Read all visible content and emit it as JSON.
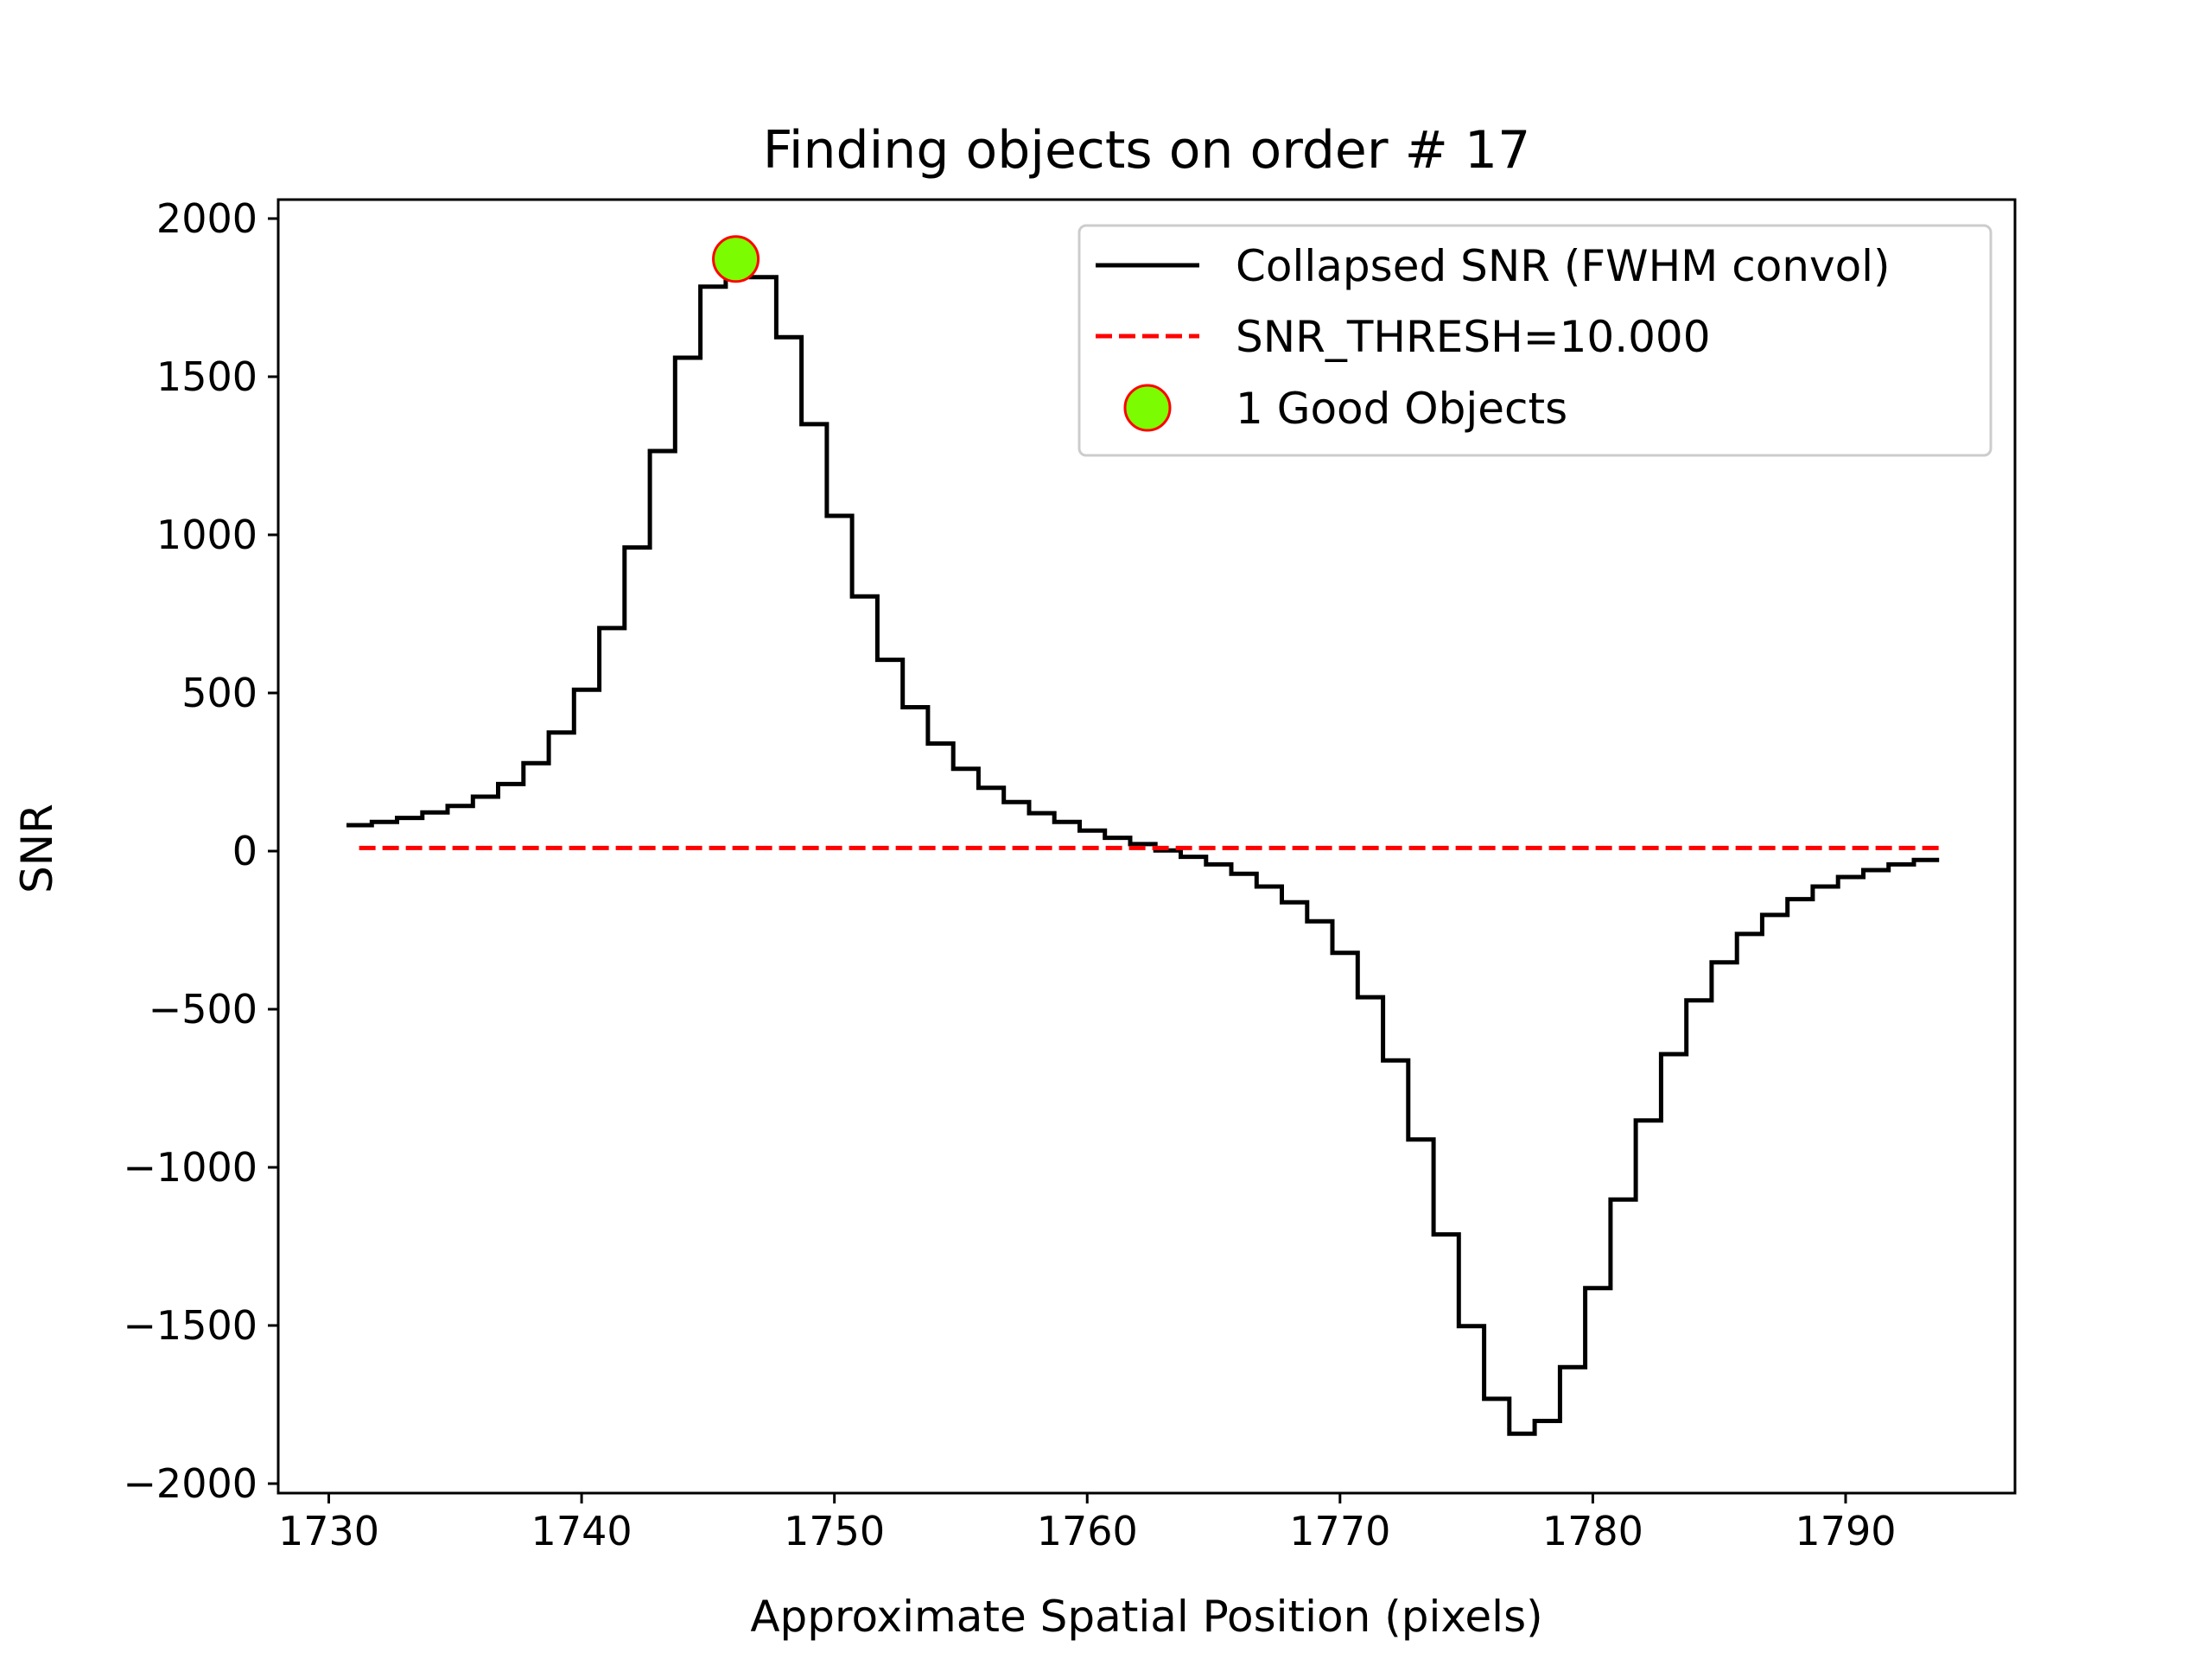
{
  "chart_data": {
    "type": "line",
    "title": "Finding objects on order # 17",
    "xlabel": "Approximate Spatial Position (pixels)",
    "ylabel": "SNR",
    "xlim": [
      1728.0,
      1796.7
    ],
    "ylim": [
      -2030,
      2060
    ],
    "xticks": [
      1730,
      1740,
      1750,
      1760,
      1770,
      1780,
      1790
    ],
    "yticks": [
      2000,
      1500,
      1000,
      500,
      0,
      -500,
      -1000,
      -1500,
      -2000
    ],
    "xtick_labels": [
      "1730",
      "1740",
      "1750",
      "1760",
      "1770",
      "1780",
      "1790"
    ],
    "ytick_labels": [
      "2000",
      "1500",
      "1000",
      "500",
      "0",
      "−500",
      "−1000",
      "−1500",
      "−2000"
    ],
    "grid": false,
    "legend_position": "top-right",
    "series": [
      {
        "name": "Collapsed SNR (FWHM convol)",
        "style": "step",
        "color": "#000000",
        "x": [
          1731.2,
          1732.2,
          1733.2,
          1734.2,
          1735.2,
          1736.2,
          1737.2,
          1738.2,
          1739.2,
          1740.2,
          1741.2,
          1742.2,
          1743.2,
          1744.2,
          1745.2,
          1746.2,
          1747.2,
          1748.2,
          1749.2,
          1750.2,
          1751.2,
          1752.2,
          1753.2,
          1754.2,
          1755.2,
          1756.2,
          1757.2,
          1758.2,
          1759.2,
          1760.2,
          1761.2,
          1762.2,
          1763.2,
          1764.2,
          1765.2,
          1766.2,
          1767.2,
          1768.2,
          1769.2,
          1770.2,
          1771.2,
          1772.2,
          1773.2,
          1774.2,
          1775.2,
          1776.2,
          1777.2,
          1778.2,
          1779.2,
          1780.2,
          1781.2,
          1782.2,
          1783.2,
          1784.2,
          1785.2,
          1786.2,
          1787.2,
          1788.2,
          1789.2,
          1790.2,
          1791.2,
          1792.2,
          1793.2
        ],
        "y": [
          82,
          92,
          105,
          122,
          143,
          172,
          212,
          278,
          375,
          510,
          705,
          960,
          1265,
          1560,
          1785,
          1880,
          1815,
          1625,
          1350,
          1060,
          805,
          605,
          455,
          340,
          260,
          200,
          155,
          120,
          92,
          65,
          42,
          22,
          2,
          -18,
          -42,
          -72,
          -112,
          -162,
          -222,
          -322,
          -462,
          -662,
          -912,
          -1212,
          -1502,
          -1732,
          -1842,
          -1802,
          -1632,
          -1382,
          -1102,
          -852,
          -642,
          -472,
          -352,
          -262,
          -202,
          -152,
          -112,
          -82,
          -60,
          -42,
          -28
        ]
      },
      {
        "name": "SNR_THRESH=10.000",
        "style": "dashed",
        "color": "#ff0000",
        "x": [
          1731.2,
          1793.7
        ],
        "y": [
          10,
          10
        ]
      }
    ],
    "markers": [
      {
        "name": "1 Good Objects",
        "x": 1746.1,
        "y": 1872,
        "fill": "#7cfc00",
        "edge": "#ff0000"
      }
    ]
  }
}
